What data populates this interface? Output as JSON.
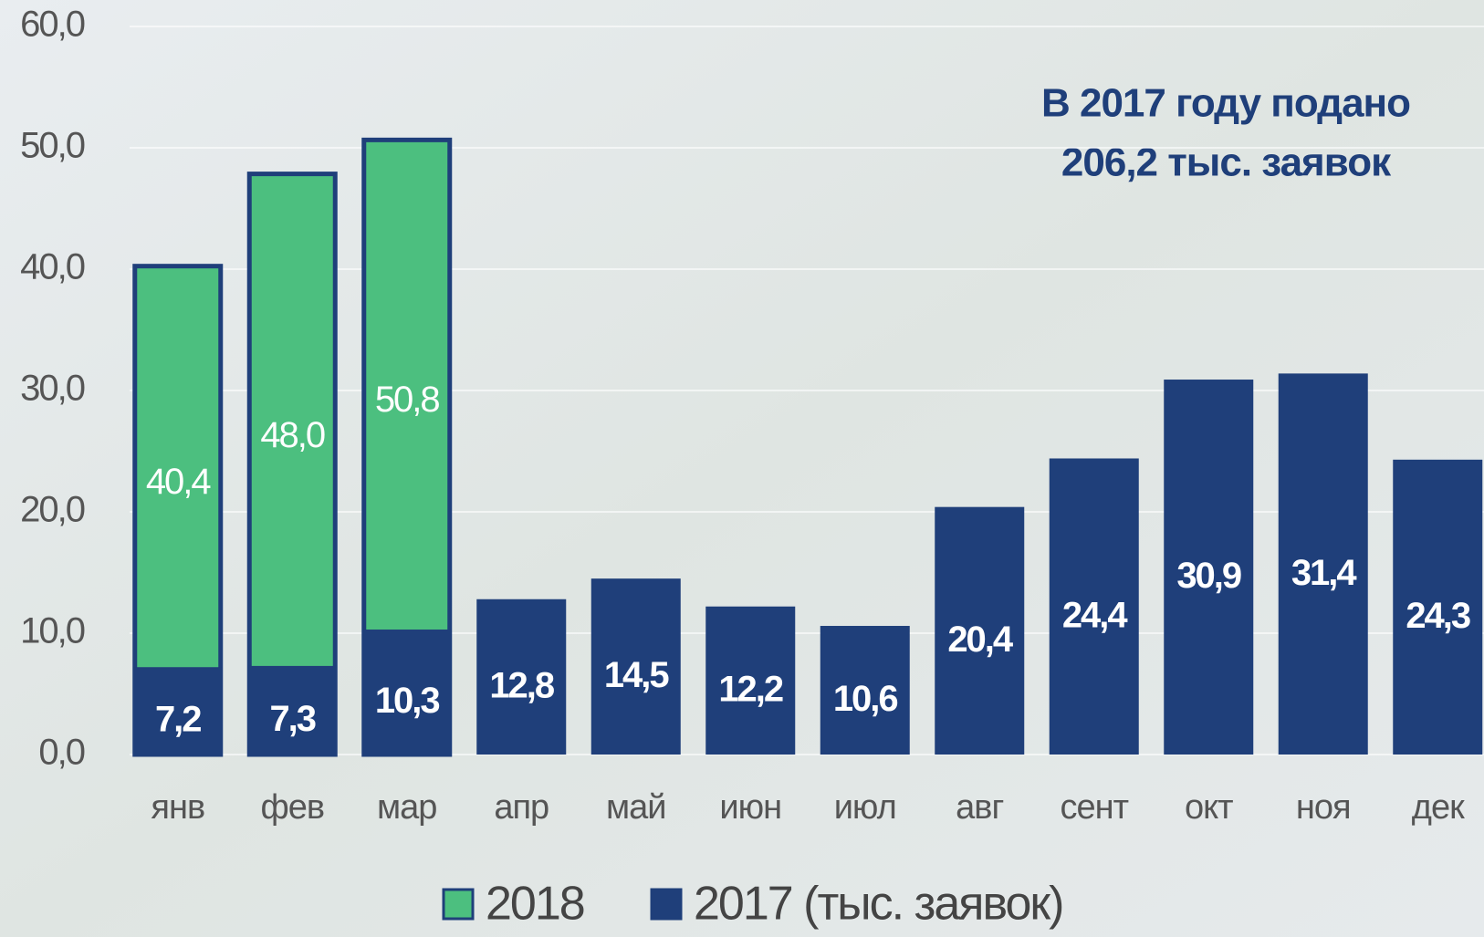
{
  "chart_data": {
    "type": "bar",
    "annotation": [
      "В 2017 году подано",
      "206,2 тыс. заявок"
    ],
    "categories": [
      "янв",
      "фев",
      "мар",
      "апр",
      "май",
      "июн",
      "июл",
      "авг",
      "сент",
      "окт",
      "ноя",
      "дек"
    ],
    "series": [
      {
        "name": "2018",
        "color": "#4cbf7f",
        "values": [
          40.4,
          48.0,
          50.8,
          null,
          null,
          null,
          null,
          null,
          null,
          null,
          null,
          null
        ],
        "value_labels": [
          "40,4",
          "48,0",
          "50,8",
          null,
          null,
          null,
          null,
          null,
          null,
          null,
          null,
          null
        ]
      },
      {
        "name": "2017 (тыс. заявок)",
        "color": "#1f3f7a",
        "values": [
          7.2,
          7.3,
          10.3,
          12.8,
          14.5,
          12.2,
          10.6,
          20.4,
          24.4,
          30.9,
          31.4,
          24.3
        ],
        "value_labels": [
          "7,2",
          "7,3",
          "10,3",
          "12,8",
          "14,5",
          "12,2",
          "10,6",
          "20,4",
          "24,4",
          "30,9",
          "31,4",
          "24,3"
        ]
      }
    ],
    "ylim": [
      0,
      60
    ],
    "yticks": [
      {
        "value": 0,
        "label": "0,0"
      },
      {
        "value": 10,
        "label": "10,0"
      },
      {
        "value": 20,
        "label": "20,0"
      },
      {
        "value": 30,
        "label": "30,0"
      },
      {
        "value": 40,
        "label": "40,0"
      },
      {
        "value": 50,
        "label": "50,0"
      },
      {
        "value": 60,
        "label": "60,0"
      }
    ],
    "grid": true,
    "legend": "bottom"
  }
}
